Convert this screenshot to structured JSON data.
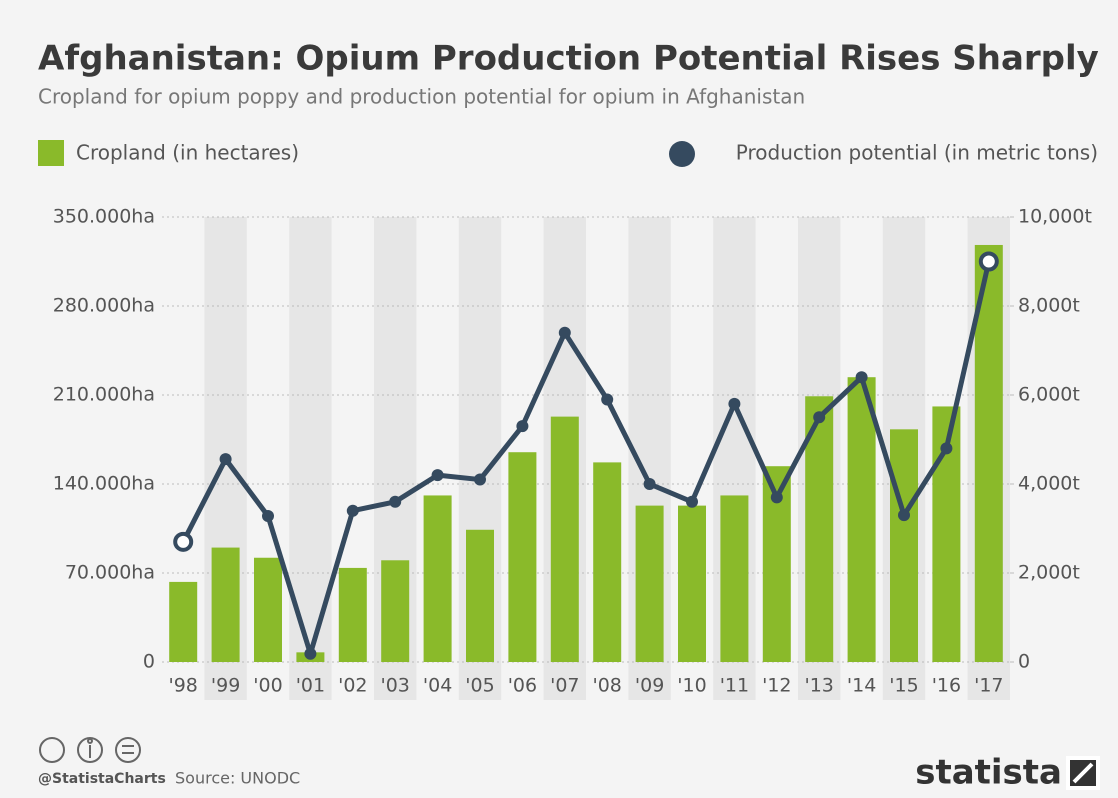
{
  "chart_data": {
    "type": "bar",
    "title": "Afghanistan: Opium Production Potential Rises Sharply",
    "subtitle": "Cropland for opium poppy and production potential for opium in Afghanistan",
    "categories": [
      "'98",
      "'99",
      "'00",
      "'01",
      "'02",
      "'03",
      "'04",
      "'05",
      "'06",
      "'07",
      "'08",
      "'09",
      "'10",
      "'11",
      "'12",
      "'13",
      "'14",
      "'15",
      "'16",
      "'17"
    ],
    "series": [
      {
        "name": "Cropland (in hectares)",
        "type": "bar",
        "color": "#8aba2a",
        "values": [
          63000,
          90000,
          82000,
          7600,
          74000,
          80000,
          131000,
          104000,
          165000,
          193000,
          157000,
          123000,
          123000,
          131000,
          154000,
          209000,
          224000,
          183000,
          201000,
          328000
        ]
      },
      {
        "name": "Production potential (in metric tons)",
        "type": "line",
        "axis": "y2",
        "color": "#354a5f",
        "values": [
          2700,
          4560,
          3280,
          185,
          3400,
          3600,
          4200,
          4100,
          5300,
          7400,
          5900,
          4000,
          3600,
          5800,
          3700,
          5500,
          6400,
          3300,
          4800,
          9000
        ]
      }
    ],
    "ylim": [
      0,
      350000
    ],
    "yticks": [
      {
        "value": 0,
        "label": "0"
      },
      {
        "value": 70000,
        "label": "70.000ha"
      },
      {
        "value": 140000,
        "label": "140.000ha"
      },
      {
        "value": 210000,
        "label": "210.000ha"
      },
      {
        "value": 280000,
        "label": "280.000ha"
      },
      {
        "value": 350000,
        "label": "350.000ha"
      }
    ],
    "y2lim": [
      0,
      10000
    ],
    "y2ticks": [
      0,
      {
        "value": 2000,
        "label": "2,000t"
      },
      {
        "value": 4000,
        "label": "4,000t"
      },
      {
        "value": 6000,
        "label": "6,000t"
      },
      {
        "value": 8000,
        "label": "8,000t"
      },
      {
        "value": 10000,
        "label": "10,000t"
      }
    ],
    "grid": true,
    "credit": "@StatistaCharts",
    "source": "Source: UNODC",
    "brand": "statista"
  }
}
